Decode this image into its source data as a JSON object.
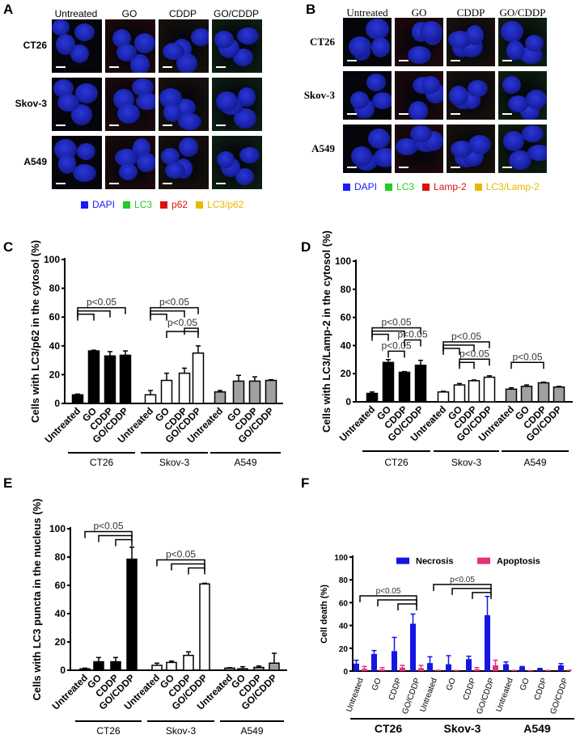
{
  "panels": {
    "a": "A",
    "b": "B",
    "c": "C",
    "d": "D",
    "e": "E",
    "f": "F"
  },
  "micrographs": {
    "a": {
      "columns": [
        "Untreated",
        "GO",
        "CDDP",
        "GO/CDDP"
      ],
      "rows": [
        "CT26",
        "Skov-3",
        "A549"
      ],
      "legend": [
        {
          "label": "DAPI",
          "color": "#1a1aff"
        },
        {
          "label": "LC3",
          "color": "#22cc22"
        },
        {
          "label": "p62",
          "color": "#e01010"
        },
        {
          "label": "LC3/p62",
          "color": "#e8b800"
        }
      ]
    },
    "b": {
      "columns": [
        "Untreated",
        "GO",
        "CDDP",
        "GO/CDDP"
      ],
      "rows": [
        "CT26",
        "Skov-3",
        "A549"
      ],
      "legend": [
        {
          "label": "DAPI",
          "color": "#1a1aff"
        },
        {
          "label": "LC3",
          "color": "#22cc22"
        },
        {
          "label": "Lamp-2",
          "color": "#e01010"
        },
        {
          "label": "LC3/Lamp-2",
          "color": "#e8b800"
        }
      ]
    }
  },
  "chart_data": [
    {
      "panel": "C",
      "type": "bar",
      "ylabel": "Cells with LC3/p62 in the cytosol (%)",
      "ylim": [
        0,
        100
      ],
      "yticks": [
        "0",
        "20",
        "40",
        "60",
        "80",
        "100"
      ],
      "groups": [
        "CT26",
        "Skov-3",
        "A549"
      ],
      "categories": [
        "Untreated",
        "GO",
        "CDDP",
        "GO/CDDP"
      ],
      "group_colors": [
        "#000000",
        "#ffffff",
        "#a0a0a0"
      ],
      "values": [
        [
          6,
          36.5,
          33,
          33.5
        ],
        [
          6,
          16,
          21,
          35
        ],
        [
          8,
          15.5,
          15.5,
          16
        ]
      ],
      "errors": [
        [
          0.5,
          0.5,
          3,
          3
        ],
        [
          3,
          5,
          3.5,
          5
        ],
        [
          1,
          4,
          3,
          0.5
        ]
      ],
      "significance": [
        {
          "group": 0,
          "label": "p<0.05",
          "pairs": [
            [
              0,
              1
            ],
            [
              0,
              2
            ],
            [
              0,
              3
            ]
          ]
        },
        {
          "group": 1,
          "label": "p<0.05",
          "pairs": [
            [
              0,
              1
            ],
            [
              0,
              2
            ],
            [
              0,
              3
            ]
          ]
        },
        {
          "group": 1,
          "label": "p<0.05",
          "pairs": [
            [
              1,
              3
            ],
            [
              2,
              3
            ]
          ]
        }
      ]
    },
    {
      "panel": "D",
      "type": "bar",
      "ylabel": "Cells with LC3/Lamp-2 in the cytosol (%)",
      "ylim": [
        0,
        100
      ],
      "yticks": [
        "0",
        "20",
        "40",
        "60",
        "80",
        "100"
      ],
      "groups": [
        "CT26",
        "Skov-3",
        "A549"
      ],
      "categories": [
        "Untreated",
        "GO",
        "CDDP",
        "GO/CDDP"
      ],
      "group_colors": [
        "#000000",
        "#ffffff",
        "#a0a0a0"
      ],
      "values": [
        [
          6,
          28,
          21,
          26
        ],
        [
          7,
          12,
          15,
          17.5
        ],
        [
          9,
          11,
          13.5,
          10.5
        ]
      ],
      "errors": [
        [
          1,
          2,
          0.5,
          3.5
        ],
        [
          0.5,
          1,
          0.5,
          1
        ],
        [
          1,
          1,
          0.5,
          0.5
        ]
      ],
      "significance": [
        {
          "group": 0,
          "label": "p<0.05",
          "pairs": [
            [
              0,
              1
            ],
            [
              0,
              2
            ],
            [
              0,
              3
            ]
          ]
        },
        {
          "group": 0,
          "label": "p<0.05",
          "pairs": [
            [
              1,
              2
            ]
          ]
        },
        {
          "group": 0,
          "label": "p<0.05",
          "pairs": [
            [
              2,
              3
            ]
          ]
        },
        {
          "group": 1,
          "label": "p<0.05",
          "pairs": [
            [
              0,
              1
            ],
            [
              0,
              2
            ],
            [
              0,
              3
            ]
          ]
        },
        {
          "group": 1,
          "label": "p<0.05",
          "pairs": [
            [
              1,
              2
            ],
            [
              1,
              3
            ]
          ]
        },
        {
          "group": 2,
          "label": "p<0.05",
          "pairs": [
            [
              0,
              2
            ]
          ]
        }
      ]
    },
    {
      "panel": "E",
      "type": "bar",
      "ylabel": "Cells with LC3 puncta in the nucleus (%)",
      "ylim": [
        0,
        100
      ],
      "yticks": [
        "0",
        "20",
        "40",
        "60",
        "80",
        "100"
      ],
      "groups": [
        "CT26",
        "Skov-3",
        "A549"
      ],
      "categories": [
        "Untreated",
        "GO",
        "CDDP",
        "GO/CDDP"
      ],
      "group_colors": [
        "#000000",
        "#ffffff",
        "#a0a0a0"
      ],
      "values": [
        [
          1,
          6,
          6,
          78.5
        ],
        [
          3.5,
          5.5,
          10.5,
          61
        ],
        [
          1.5,
          1,
          2,
          5
        ]
      ],
      "errors": [
        [
          0.5,
          3,
          3,
          8.5
        ],
        [
          1.5,
          1,
          2.5,
          0.5
        ],
        [
          0.3,
          1.5,
          1,
          7
        ]
      ],
      "significance": [
        {
          "group": 0,
          "label": "p<0.05",
          "pairs": [
            [
              0,
              3
            ],
            [
              1,
              3
            ],
            [
              2,
              3
            ]
          ]
        },
        {
          "group": 1,
          "label": "p<0.05",
          "pairs": [
            [
              0,
              3
            ],
            [
              1,
              3
            ],
            [
              2,
              3
            ]
          ]
        }
      ]
    },
    {
      "panel": "F",
      "type": "bar",
      "ylabel": "Cell death (%)",
      "ylim": [
        0,
        100
      ],
      "yticks": [
        "0",
        "20",
        "40",
        "60",
        "80",
        "100"
      ],
      "groups": [
        "CT26",
        "Skov-3",
        "A549"
      ],
      "categories": [
        "Untreated",
        "GO",
        "CDDP",
        "GO/CDDP"
      ],
      "legend_position": "top-right",
      "series": [
        {
          "name": "Necrosis",
          "color": "#1515e6",
          "values": [
            [
              6.5,
              15,
              17.5,
              41.5
            ],
            [
              7,
              6,
              10.5,
              49
            ],
            [
              6,
              3.5,
              2,
              5
            ]
          ],
          "errors": [
            [
              3,
              3,
              12,
              8.5
            ],
            [
              5.5,
              7.5,
              2.5,
              16.5
            ],
            [
              2,
              0.5,
              0.3,
              1.5
            ]
          ]
        },
        {
          "name": "Apoptosis",
          "color": "#e8307a",
          "values": [
            [
              2,
              1.5,
              3,
              2.5
            ],
            [
              0.5,
              0.3,
              1.5,
              5
            ],
            [
              0.5,
              0.3,
              0.5,
              0.5
            ]
          ],
          "errors": [
            [
              2,
              1.5,
              2,
              2.5
            ],
            [
              0.2,
              0.2,
              1.5,
              4.5
            ],
            [
              0.1,
              0.1,
              0.1,
              0.2
            ]
          ]
        }
      ],
      "significance": [
        {
          "group": 0,
          "label": "p<0.05",
          "pairs": [
            [
              0,
              3
            ],
            [
              1,
              3
            ],
            [
              2,
              3
            ]
          ]
        },
        {
          "group": 1,
          "label": "p<0.05",
          "pairs": [
            [
              0,
              3
            ],
            [
              1,
              3
            ],
            [
              2,
              3
            ]
          ]
        }
      ]
    }
  ]
}
